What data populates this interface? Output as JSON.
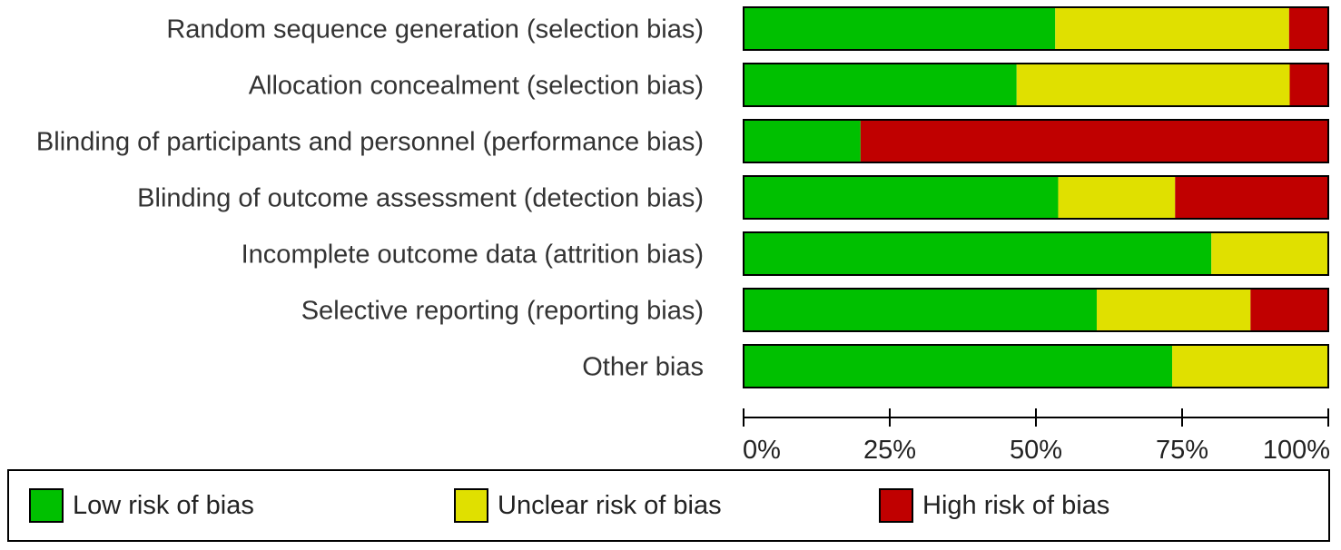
{
  "chart_data": {
    "type": "bar",
    "stacked": true,
    "orientation": "horizontal",
    "categories": [
      "Random sequence generation (selection bias)",
      "Allocation concealment (selection bias)",
      "Blinding of participants and personnel (performance bias)",
      "Blinding of outcome assessment (detection bias)",
      "Incomplete outcome data (attrition bias)",
      "Selective reporting (reporting bias)",
      "Other bias"
    ],
    "series": [
      {
        "name": "Low risk of bias",
        "color": "#00c000",
        "values": [
          53.3,
          46.7,
          20,
          53.8,
          80,
          60.4,
          73.3
        ]
      },
      {
        "name": "Unclear risk of bias",
        "color": "#e0e000",
        "values": [
          40,
          46.7,
          0,
          20,
          20,
          26.3,
          26.7
        ]
      },
      {
        "name": "High risk of bias",
        "color": "#c00000",
        "values": [
          6.7,
          6.6,
          80,
          26.2,
          0,
          13.3,
          0
        ]
      }
    ],
    "xlim": [
      0,
      100
    ],
    "xticks": [
      "0%",
      "25%",
      "50%",
      "75%",
      "100%"
    ],
    "legend_position": "bottom"
  },
  "legend": {
    "low": "Low risk of bias",
    "unclear": "Unclear risk of bias",
    "high": "High risk of bias"
  },
  "colors": {
    "low": "#00c000",
    "unclear": "#e0e000",
    "high": "#c00000"
  }
}
